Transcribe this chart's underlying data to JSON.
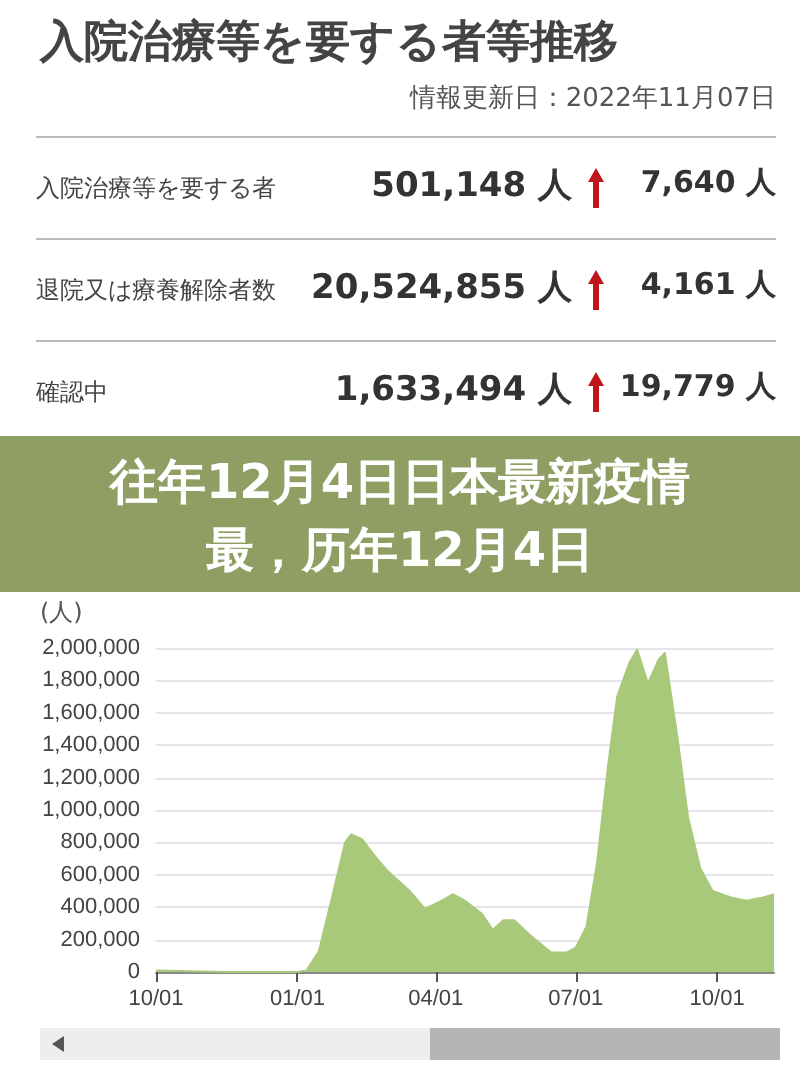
{
  "chart_data": {
    "type": "area",
    "title": "入院治療等を要する者等推移",
    "subtitle": "情報更新日：2022年11月07日",
    "ylabel": "(人)",
    "annotations": [
      "入院治療等を要する者",
      "501,148 人",
      "7,640 人",
      "退院又は療養解除者数",
      "20,524,855 人",
      "4,161 人",
      "確認中",
      "1,633,494 人",
      "19,779 人",
      "往年12月4日日本最新疫情最，历年12月4日"
    ],
    "x": [
      "2021-10-01",
      "2021-11-15",
      "2022-01-01",
      "2022-01-07",
      "2022-01-15",
      "2022-01-25",
      "2022-02-01",
      "2022-02-05",
      "2022-02-12",
      "2022-02-20",
      "2022-03-01",
      "2022-03-15",
      "2022-03-25",
      "2022-04-05",
      "2022-04-12",
      "2022-04-20",
      "2022-05-01",
      "2022-05-08",
      "2022-05-15",
      "2022-05-22",
      "2022-06-01",
      "2022-06-15",
      "2022-06-25",
      "2022-07-01",
      "2022-07-08",
      "2022-07-15",
      "2022-07-22",
      "2022-07-28",
      "2022-08-05",
      "2022-08-10",
      "2022-08-17",
      "2022-08-24",
      "2022-08-28",
      "2022-09-05",
      "2022-09-12",
      "2022-09-20",
      "2022-09-28",
      "2022-10-10",
      "2022-10-20",
      "2022-10-31",
      "2022-11-07"
    ],
    "series": [
      {
        "color": "#a9c97a",
        "values": [
          10000,
          0,
          0,
          10000,
          130000,
          520000,
          800000,
          850000,
          820000,
          720000,
          620000,
          500000,
          390000,
          440000,
          480000,
          440000,
          360000,
          260000,
          320000,
          320000,
          230000,
          120000,
          120000,
          150000,
          280000,
          680000,
          1270000,
          1700000,
          1910000,
          1990000,
          1780000,
          1930000,
          1970000,
          1460000,
          960000,
          640000,
          500000,
          460000,
          440000,
          460000,
          480000
        ]
      }
    ],
    "xlim": [
      "2021-10-01",
      "2022-11-07"
    ],
    "xticks": [
      {
        "value": "2021-10-01",
        "label": "10/01"
      },
      {
        "value": "2022-01-01",
        "label": "01/01"
      },
      {
        "value": "2022-04-01",
        "label": "04/01"
      },
      {
        "value": "2022-07-01",
        "label": "07/01"
      },
      {
        "value": "2022-10-01",
        "label": "10/01"
      }
    ],
    "ylim": [
      0,
      2000000
    ],
    "yticks": [
      {
        "value": 0,
        "label": "0"
      },
      {
        "value": 200000,
        "label": "200,000"
      },
      {
        "value": 400000,
        "label": "400,000"
      },
      {
        "value": 600000,
        "label": "600,000"
      },
      {
        "value": 800000,
        "label": "800,000"
      },
      {
        "value": 1000000,
        "label": "1,000,000"
      },
      {
        "value": 1200000,
        "label": "1,200,000"
      },
      {
        "value": 1400000,
        "label": "1,400,000"
      },
      {
        "value": 1600000,
        "label": "1,600,000"
      },
      {
        "value": 1800000,
        "label": "1,800,000"
      },
      {
        "value": 2000000,
        "label": "2,000,000"
      }
    ],
    "grid": "y",
    "marker": "none"
  }
}
